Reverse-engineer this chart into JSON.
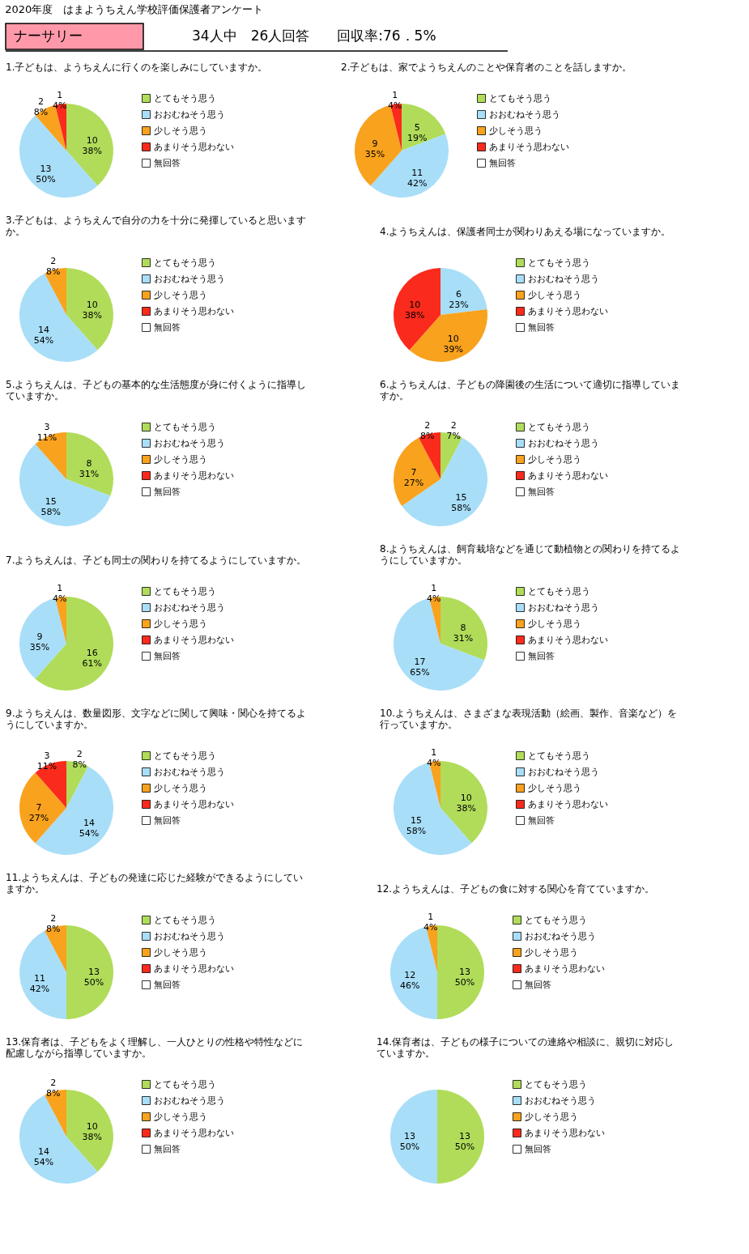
{
  "chart_data": [
    {
      "type": "other",
      "title": "2020年度　はまようちえん学校評価保護者アンケート",
      "annotations": [
        "ナーサリー",
        "34人中　26人回答　　回収率:76．5%"
      ]
    },
    {
      "type": "pie",
      "title": "1.子どもは、ようちえんに行くのを楽しみにしていますか。",
      "categories": [
        "とてもそう思う",
        "おおむねそう思う",
        "少しそう思う",
        "あまりそう思わない",
        "無回答"
      ],
      "values": [
        10,
        13,
        2,
        1,
        0
      ],
      "colors": [
        "#b0dc5a",
        "#a8def8",
        "#f8a21e",
        "#fa2a1c",
        "#ffffff"
      ],
      "value_labels": [
        "10\n38%",
        "13\n50%",
        "2\n8%",
        "1\n4%",
        null
      ],
      "legend": "right"
    },
    {
      "type": "pie",
      "title": "2.子どもは、家でようちえんのことや保育者のことを話しますか。",
      "categories": [
        "とてもそう思う",
        "おおむねそう思う",
        "少しそう思う",
        "あまりそう思わない",
        "無回答"
      ],
      "values": [
        5,
        11,
        9,
        1,
        0
      ],
      "colors": [
        "#b0dc5a",
        "#a8def8",
        "#f8a21e",
        "#fa2a1c",
        "#ffffff"
      ],
      "value_labels": [
        "5\n19%",
        "11\n42%",
        "9\n35%",
        "1\n4%",
        null
      ],
      "legend": "right"
    },
    {
      "type": "pie",
      "title": "3.子どもは、ようちえんで自分の力を十分に発揮していると思いますか。",
      "categories": [
        "とてもそう思う",
        "おおむねそう思う",
        "少しそう思う",
        "あまりそう思わない",
        "無回答"
      ],
      "values": [
        10,
        14,
        2,
        0,
        0
      ],
      "colors": [
        "#b0dc5a",
        "#a8def8",
        "#f8a21e",
        "#fa2a1c",
        "#ffffff"
      ],
      "value_labels": [
        "10\n38%",
        "14\n54%",
        "2\n8%",
        null,
        null
      ],
      "legend": "right"
    },
    {
      "type": "pie",
      "title": "4.ようちえんは、保護者同士が関わりあえる場になっていますか。",
      "categories": [
        "とてもそう思う",
        "おおむねそう思う",
        "少しそう思う",
        "あまりそう思わない",
        "無回答"
      ],
      "values": [
        0,
        6,
        10,
        10,
        0
      ],
      "colors": [
        "#b0dc5a",
        "#a8def8",
        "#f8a21e",
        "#fa2a1c",
        "#ffffff"
      ],
      "value_labels": [
        null,
        "6\n23%",
        "10\n39%",
        "10\n38%",
        null
      ],
      "legend": "right"
    },
    {
      "type": "pie",
      "title": "5.ようちえんは、子どもの基本的な生活態度が身に付くように指導していますか。",
      "categories": [
        "とてもそう思う",
        "おおむねそう思う",
        "少しそう思う",
        "あまりそう思わない",
        "無回答"
      ],
      "values": [
        8,
        15,
        3,
        0,
        0
      ],
      "colors": [
        "#b0dc5a",
        "#a8def8",
        "#f8a21e",
        "#fa2a1c",
        "#ffffff"
      ],
      "value_labels": [
        "8\n31%",
        "15\n58%",
        "3\n11%",
        null,
        null
      ],
      "legend": "right"
    },
    {
      "type": "pie",
      "title": "6.ようちえんは、子どもの降園後の生活について適切に指導していますか。",
      "categories": [
        "とてもそう思う",
        "おおむねそう思う",
        "少しそう思う",
        "あまりそう思わない",
        "無回答"
      ],
      "values": [
        2,
        15,
        7,
        2,
        0
      ],
      "colors": [
        "#b0dc5a",
        "#a8def8",
        "#f8a21e",
        "#fa2a1c",
        "#ffffff"
      ],
      "value_labels": [
        "2\n7%",
        "15\n58%",
        "7\n27%",
        "2\n8%",
        null
      ],
      "legend": "right"
    },
    {
      "type": "pie",
      "title": "7.ようちえんは、子ども同士の関わりを持てるようにしていますか。",
      "categories": [
        "とてもそう思う",
        "おおむねそう思う",
        "少しそう思う",
        "あまりそう思わない",
        "無回答"
      ],
      "values": [
        16,
        9,
        1,
        0,
        0
      ],
      "colors": [
        "#b0dc5a",
        "#a8def8",
        "#f8a21e",
        "#fa2a1c",
        "#ffffff"
      ],
      "value_labels": [
        "16\n61%",
        "9\n35%",
        "1\n4%",
        null,
        null
      ],
      "legend": "right"
    },
    {
      "type": "pie",
      "title": "8.ようちえんは、飼育栽培などを通じて動植物との関わりを持てるようにしていますか。",
      "categories": [
        "とてもそう思う",
        "おおむねそう思う",
        "少しそう思う",
        "あまりそう思わない",
        "無回答"
      ],
      "values": [
        8,
        17,
        1,
        0,
        0
      ],
      "colors": [
        "#b0dc5a",
        "#a8def8",
        "#f8a21e",
        "#fa2a1c",
        "#ffffff"
      ],
      "value_labels": [
        "8\n31%",
        "17\n65%",
        "1\n4%",
        null,
        null
      ],
      "legend": "right"
    },
    {
      "type": "pie",
      "title": "9.ようちえんは、数量図形、文字などに関して興味・関心を持てるようにしていますか。",
      "categories": [
        "とてもそう思う",
        "おおむねそう思う",
        "少しそう思う",
        "あまりそう思わない",
        "無回答"
      ],
      "values": [
        2,
        14,
        7,
        3,
        0
      ],
      "colors": [
        "#b0dc5a",
        "#a8def8",
        "#f8a21e",
        "#fa2a1c",
        "#ffffff"
      ],
      "value_labels": [
        "2\n8%",
        "14\n54%",
        "7\n27%",
        "3\n11%",
        null
      ],
      "legend": "right"
    },
    {
      "type": "pie",
      "title": "10.ようちえんは、さまざまな表現活動（絵画、製作、音楽など）を行っていますか。",
      "categories": [
        "とてもそう思う",
        "おおむねそう思う",
        "少しそう思う",
        "あまりそう思わない",
        "無回答"
      ],
      "values": [
        10,
        15,
        1,
        0,
        0
      ],
      "colors": [
        "#b0dc5a",
        "#a8def8",
        "#f8a21e",
        "#fa2a1c",
        "#ffffff"
      ],
      "value_labels": [
        "10\n38%",
        "15\n58%",
        "1\n4%",
        null,
        null
      ],
      "legend": "right"
    },
    {
      "type": "pie",
      "title": "11.ようちえんは、子どもの発達に応じた経験ができるようにしていますか。",
      "categories": [
        "とてもそう思う",
        "おおむねそう思う",
        "少しそう思う",
        "あまりそう思わない",
        "無回答"
      ],
      "values": [
        13,
        11,
        2,
        0,
        0
      ],
      "colors": [
        "#b0dc5a",
        "#a8def8",
        "#f8a21e",
        "#fa2a1c",
        "#ffffff"
      ],
      "value_labels": [
        "13\n50%",
        "11\n42%",
        "2\n8%",
        null,
        null
      ],
      "legend": "right"
    },
    {
      "type": "pie",
      "title": "12.ようちえんは、子どもの食に対する関心を育てていますか。",
      "categories": [
        "とてもそう思う",
        "おおむねそう思う",
        "少しそう思う",
        "あまりそう思わない",
        "無回答"
      ],
      "values": [
        13,
        12,
        1,
        0,
        0
      ],
      "colors": [
        "#b0dc5a",
        "#a8def8",
        "#f8a21e",
        "#fa2a1c",
        "#ffffff"
      ],
      "value_labels": [
        "13\n50%",
        "12\n46%",
        "1\n4%",
        null,
        null
      ],
      "legend": "right"
    },
    {
      "type": "pie",
      "title": "13.保育者は、子どもをよく理解し、一人ひとりの性格や特性などに配慮しながら指導していますか。",
      "categories": [
        "とてもそう思う",
        "おおむねそう思う",
        "少しそう思う",
        "あまりそう思わない",
        "無回答"
      ],
      "values": [
        10,
        14,
        2,
        0,
        0
      ],
      "colors": [
        "#b0dc5a",
        "#a8def8",
        "#f8a21e",
        "#fa2a1c",
        "#ffffff"
      ],
      "value_labels": [
        "10\n38%",
        "14\n54%",
        "2\n8%",
        null,
        null
      ],
      "legend": "right"
    },
    {
      "type": "pie",
      "title": "14.保育者は、子どもの様子についての連絡や相談に、親切に対応していますか。",
      "categories": [
        "とてもそう思う",
        "おおむねそう思う",
        "少しそう思う",
        "あまりそう思わない",
        "無回答"
      ],
      "values": [
        13,
        13,
        0,
        0,
        0
      ],
      "colors": [
        "#b0dc5a",
        "#a8def8",
        "#f8a21e",
        "#fa2a1c",
        "#ffffff"
      ],
      "value_labels": [
        "13\n50%",
        "13\n50%",
        null,
        null,
        null
      ],
      "legend": "right"
    }
  ]
}
